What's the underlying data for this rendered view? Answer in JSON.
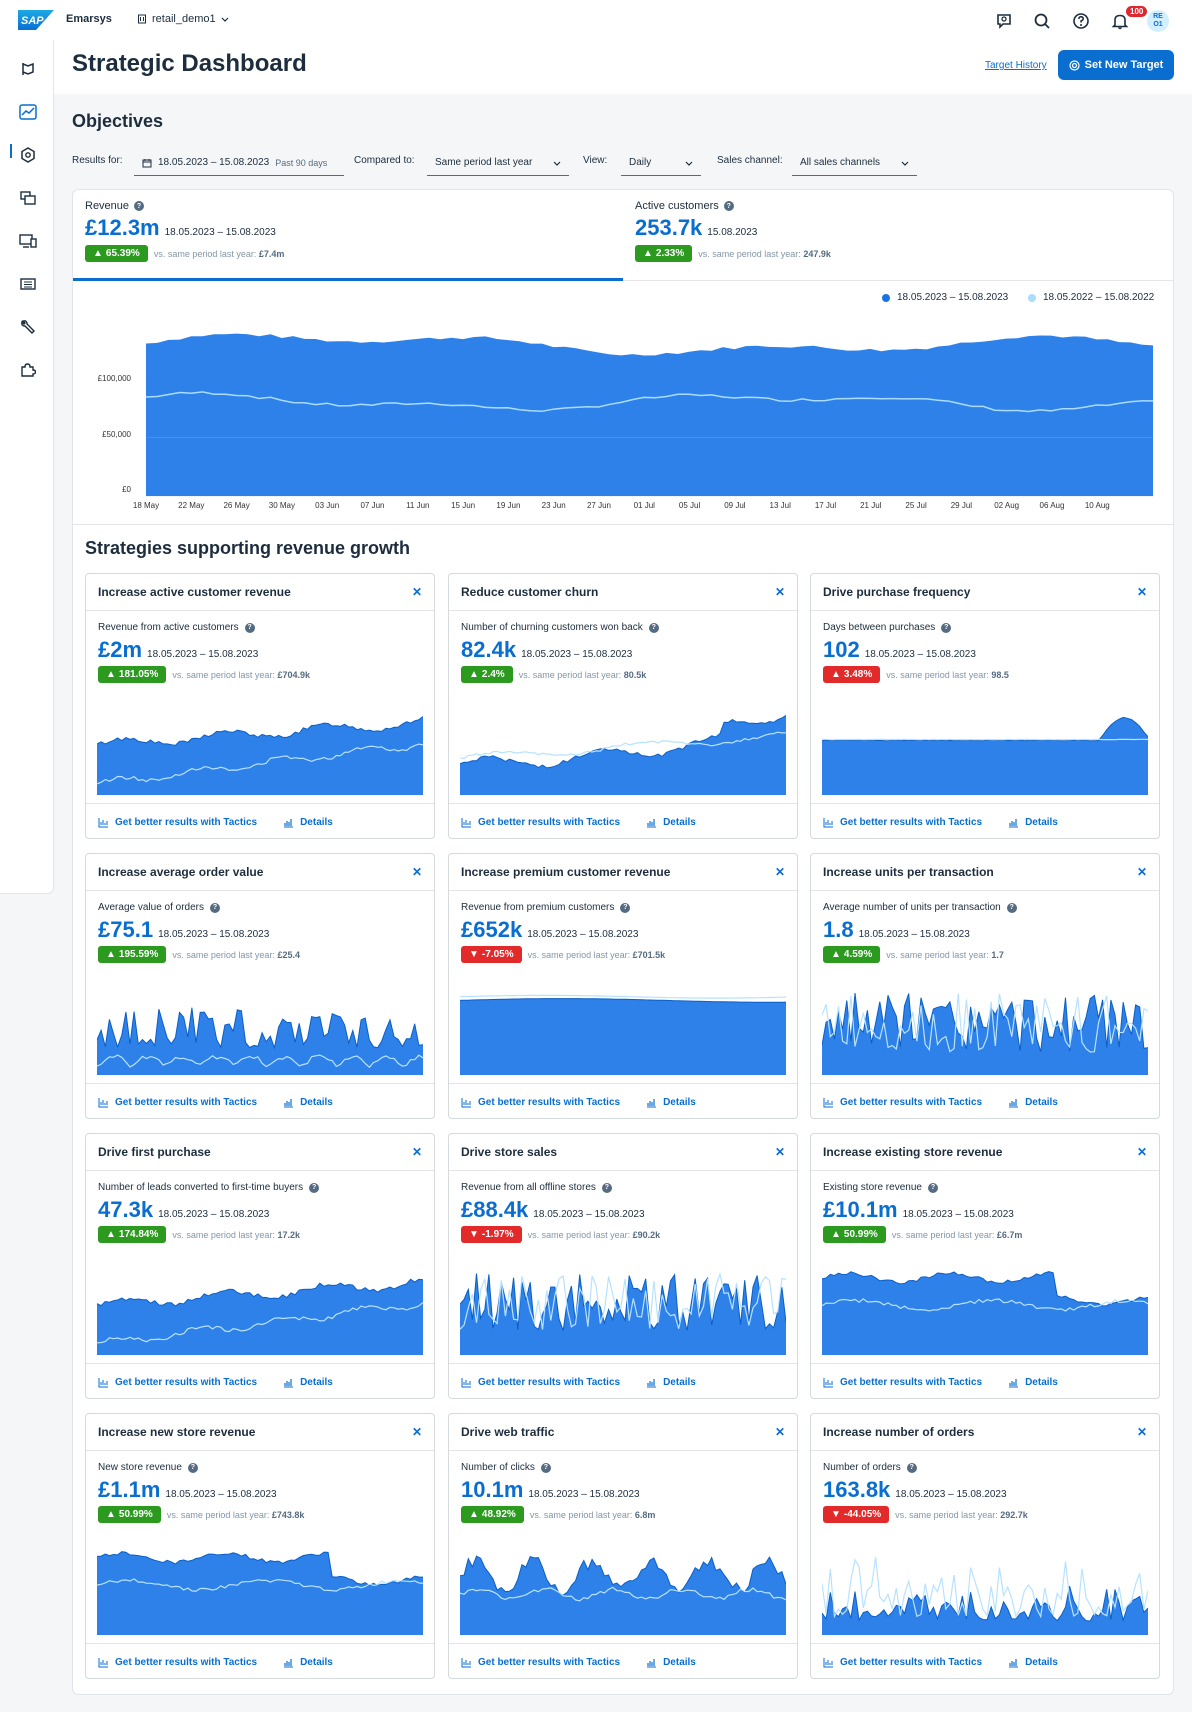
{
  "app": {
    "brand": "Emarsys",
    "tenant": "retail_demo1",
    "notifications": "100",
    "avatar_line1": "RE",
    "avatar_line2": "O1"
  },
  "header": {
    "title": "Strategic Dashboard",
    "target_history": "Target History",
    "set_new_target": "Set New Target"
  },
  "objectives": {
    "title": "Objectives",
    "results_for_label": "Results for:",
    "date_range": "18.05.2023 – 15.08.2023",
    "range_hint": "Past 90 days",
    "compared_to_label": "Compared to:",
    "compared_to": "Same period last year",
    "view_label": "View:",
    "view": "Daily",
    "sales_channel_label": "Sales channel:",
    "sales_channel": "All sales channels"
  },
  "kpis": [
    {
      "label": "Revenue",
      "value": "£12.3m",
      "date": "18.05.2023 – 15.08.2023",
      "change": "65.39%",
      "direction": "up",
      "compare_text": "vs. same period last year:",
      "compare_value": "£7.4m"
    },
    {
      "label": "Active customers",
      "value": "253.7k",
      "date": "15.08.2023",
      "change": "2.33%",
      "direction": "up",
      "compare_text": "vs. same period last year:",
      "compare_value": "247.9k"
    }
  ],
  "chart_data": {
    "type": "area",
    "series": [
      {
        "name": "18.05.2023 – 15.08.2023",
        "color": "#1873e8"
      },
      {
        "name": "18.05.2022 – 15.08.2022",
        "color": "#a9dcff"
      }
    ],
    "y_ticks": [
      "£100,000",
      "£50,000",
      "£0"
    ],
    "ylim": [
      0,
      150000
    ],
    "x_ticks": [
      "18 May",
      "22 May",
      "26 May",
      "30 May",
      "03 Jun",
      "07 Jun",
      "11 Jun",
      "15 Jun",
      "19 Jun",
      "23 Jun",
      "27 Jun",
      "01 Jul",
      "05 Jul",
      "09 Jul",
      "13 Jul",
      "17 Jul",
      "21 Jul",
      "25 Jul",
      "29 Jul",
      "02 Aug",
      "06 Aug",
      "10 Aug"
    ]
  },
  "strategies": {
    "title": "Strategies supporting revenue growth",
    "tactics_label": "Get better results with Tactics",
    "details_label": "Details",
    "cards": [
      {
        "title": "Increase active customer revenue",
        "metric": "Revenue from active customers",
        "value": "£2m",
        "date": "18.05.2023 – 15.08.2023",
        "change": "181.05%",
        "direction": "up",
        "compare_text": "vs. same period last year:",
        "compare_value": "£704.9k",
        "pattern": "rising"
      },
      {
        "title": "Reduce customer churn",
        "metric": "Number of churning customers won back",
        "value": "82.4k",
        "date": "18.05.2023 – 15.08.2023",
        "change": "2.4%",
        "direction": "up",
        "compare_text": "vs. same period last year:",
        "compare_value": "80.5k",
        "pattern": "churn"
      },
      {
        "title": "Drive purchase frequency",
        "metric": "Days between purchases",
        "value": "102",
        "date": "18.05.2023 – 15.08.2023",
        "change": "3.48%",
        "direction": "up-bad",
        "compare_text": "vs. same period last year:",
        "compare_value": "98.5",
        "pattern": "flat-spike"
      },
      {
        "title": "Increase average order value",
        "metric": "Average value of orders",
        "value": "£75.1",
        "date": "18.05.2023 – 15.08.2023",
        "change": "195.59%",
        "direction": "up",
        "compare_text": "vs. same period last year:",
        "compare_value": "£25.4",
        "pattern": "spiky"
      },
      {
        "title": "Increase premium customer revenue",
        "metric": "Revenue from premium customers",
        "value": "£652k",
        "date": "18.05.2023 – 15.08.2023",
        "change": "-7.05%",
        "direction": "down",
        "compare_text": "vs. same period last year:",
        "compare_value": "£701.5k",
        "pattern": "flat-high"
      },
      {
        "title": "Increase units per transaction",
        "metric": "Average number of units per transaction",
        "value": "1.8",
        "date": "18.05.2023 – 15.08.2023",
        "change": "4.59%",
        "direction": "up",
        "compare_text": "vs. same period last year:",
        "compare_value": "1.7",
        "pattern": "wild"
      },
      {
        "title": "Drive first purchase",
        "metric": "Number of leads converted to first-time buyers",
        "value": "47.3k",
        "date": "18.05.2023 – 15.08.2023",
        "change": "174.84%",
        "direction": "up",
        "compare_text": "vs. same period last year:",
        "compare_value": "17.2k",
        "pattern": "rising"
      },
      {
        "title": "Drive store sales",
        "metric": "Revenue from all offline stores",
        "value": "£88.4k",
        "date": "18.05.2023 – 15.08.2023",
        "change": "-1.97%",
        "direction": "down",
        "compare_text": "vs. same period last year:",
        "compare_value": "£90.2k",
        "pattern": "wild"
      },
      {
        "title": "Increase existing store revenue",
        "metric": "Existing store revenue",
        "value": "£10.1m",
        "date": "18.05.2023 – 15.08.2023",
        "change": "50.99%",
        "direction": "up",
        "compare_text": "vs. same period last year:",
        "compare_value": "£6.7m",
        "pattern": "step-down"
      },
      {
        "title": "Increase new store revenue",
        "metric": "New store revenue",
        "value": "£1.1m",
        "date": "18.05.2023 – 15.08.2023",
        "change": "50.99%",
        "direction": "up",
        "compare_text": "vs. same period last year:",
        "compare_value": "£743.8k",
        "pattern": "step-down"
      },
      {
        "title": "Drive web traffic",
        "metric": "Number of clicks",
        "value": "10.1m",
        "date": "18.05.2023 – 15.08.2023",
        "change": "48.92%",
        "direction": "up",
        "compare_text": "vs. same period last year:",
        "compare_value": "6.8m",
        "pattern": "wavy"
      },
      {
        "title": "Increase number of orders",
        "metric": "Number of orders",
        "value": "163.8k",
        "date": "18.05.2023 – 15.08.2023",
        "change": "-44.05%",
        "direction": "down",
        "compare_text": "vs. same period last year:",
        "compare_value": "292.7k",
        "pattern": "low-spiky"
      }
    ]
  }
}
